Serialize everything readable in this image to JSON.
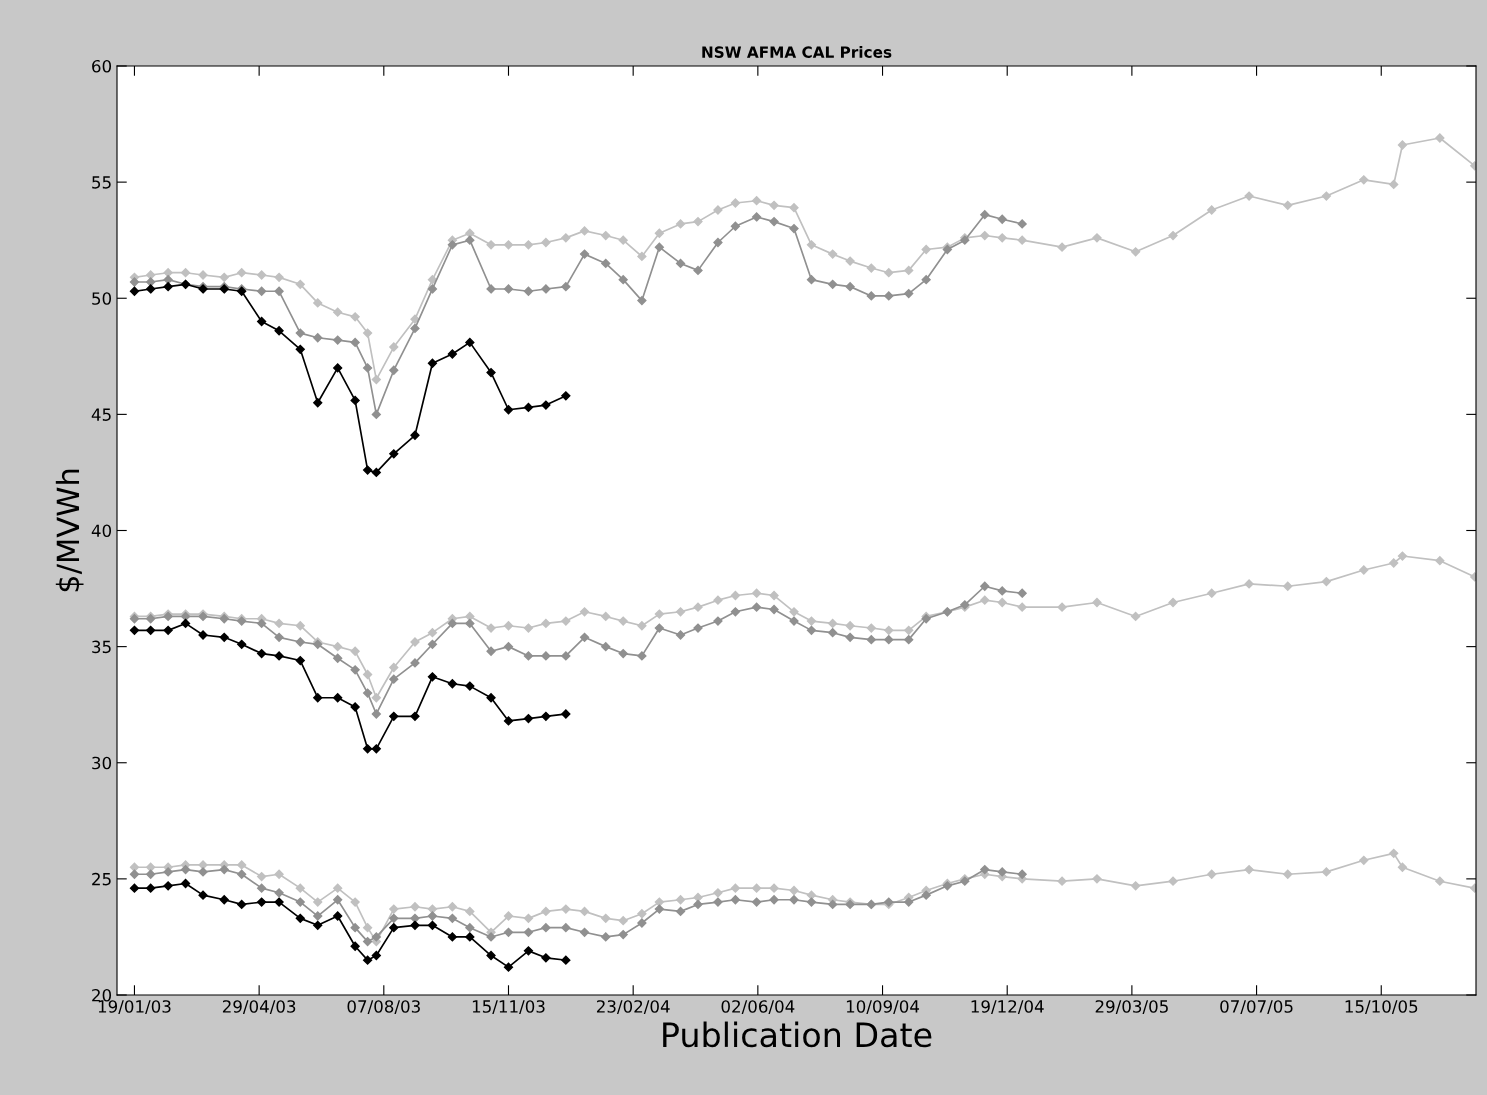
{
  "chart_data": {
    "type": "line",
    "title": "NSW AFMA CAL Prices",
    "xlabel": "Publication Date",
    "ylabel": "$/MVWh",
    "x": [
      "2003-01-19",
      "2003-02-01",
      "2003-02-15",
      "2003-03-01",
      "2003-03-15",
      "2003-04-01",
      "2003-04-15",
      "2003-05-01",
      "2003-05-15",
      "2003-06-01",
      "2003-06-15",
      "2003-07-01",
      "2003-07-15",
      "2003-07-25",
      "2003-08-01",
      "2003-08-15",
      "2003-09-01",
      "2003-09-15",
      "2003-10-01",
      "2003-10-15",
      "2003-11-01",
      "2003-11-15",
      "2003-12-01",
      "2003-12-15",
      "2003-12-31",
      "2004-01-15",
      "2004-02-01",
      "2004-02-15",
      "2004-03-01",
      "2004-03-15",
      "2004-04-01",
      "2004-04-15",
      "2004-05-01",
      "2004-05-15",
      "2004-06-01",
      "2004-06-15",
      "2004-07-01",
      "2004-07-15",
      "2004-08-01",
      "2004-08-15",
      "2004-09-01",
      "2004-09-15",
      "2004-10-01",
      "2004-10-15",
      "2004-11-01",
      "2004-11-15",
      "2004-12-01",
      "2004-12-15",
      "2004-12-31",
      "2005-02-01",
      "2005-03-01",
      "2005-04-01",
      "2005-05-01",
      "2005-06-01",
      "2005-07-01",
      "2005-08-01",
      "2005-09-01",
      "2005-10-01",
      "2005-10-25",
      "2005-11-01",
      "2005-12-01",
      "2005-12-29"
    ],
    "series": [
      {
        "color": "#c0c0c0",
        "values": [
          50.9,
          51.0,
          51.1,
          51.1,
          51.0,
          50.9,
          51.1,
          51.0,
          50.9,
          50.6,
          49.8,
          49.4,
          49.2,
          48.5,
          46.5,
          47.9,
          49.1,
          50.8,
          52.5,
          52.8,
          52.3,
          52.3,
          52.3,
          52.4,
          52.6,
          52.9,
          52.7,
          52.5,
          51.8,
          52.8,
          53.2,
          53.3,
          53.8,
          54.1,
          54.2,
          54.0,
          53.9,
          52.3,
          51.9,
          51.6,
          51.3,
          51.1,
          51.2,
          52.1,
          52.2,
          52.6,
          52.7,
          52.6,
          52.5,
          52.2,
          52.6,
          52.0,
          52.7,
          53.8,
          54.4,
          54.0,
          54.4,
          55.1,
          54.9,
          56.6,
          56.9,
          55.7
        ]
      },
      {
        "color": "#909090",
        "values": [
          50.7,
          50.7,
          50.8,
          50.6,
          50.5,
          50.5,
          50.4,
          50.3,
          50.3,
          48.5,
          48.3,
          48.2,
          48.1,
          47.0,
          45.0,
          46.9,
          48.7,
          50.4,
          52.3,
          52.5,
          50.4,
          50.4,
          50.3,
          50.4,
          50.5,
          51.9,
          51.5,
          50.8,
          49.9,
          52.2,
          51.5,
          51.2,
          52.4,
          53.1,
          53.5,
          53.3,
          53.0,
          50.8,
          50.6,
          50.5,
          50.1,
          50.1,
          50.2,
          50.8,
          52.1,
          52.5,
          53.6,
          53.4,
          53.2,
          null,
          null,
          null,
          null,
          null,
          null,
          null,
          null,
          null,
          null,
          null,
          null,
          null
        ]
      },
      {
        "color": "#000000",
        "values": [
          50.3,
          50.4,
          50.5,
          50.6,
          50.4,
          50.4,
          50.3,
          49.0,
          48.6,
          47.8,
          45.5,
          47.0,
          45.6,
          42.6,
          42.5,
          43.3,
          44.1,
          47.2,
          47.6,
          48.1,
          46.8,
          45.2,
          45.3,
          45.4,
          45.8,
          null,
          null,
          null,
          null,
          null,
          null,
          null,
          null,
          null,
          null,
          null,
          null,
          null,
          null,
          null,
          null,
          null,
          null,
          null,
          null,
          null,
          null,
          null,
          null,
          null,
          null,
          null,
          null,
          null,
          null,
          null,
          null,
          null,
          null,
          null,
          null,
          null
        ]
      },
      {
        "color": "#c0c0c0",
        "values": [
          36.3,
          36.3,
          36.4,
          36.4,
          36.4,
          36.3,
          36.2,
          36.2,
          36.0,
          35.9,
          35.2,
          35.0,
          34.8,
          33.8,
          32.8,
          34.1,
          35.2,
          35.6,
          36.2,
          36.3,
          35.8,
          35.9,
          35.8,
          36.0,
          36.1,
          36.5,
          36.3,
          36.1,
          35.9,
          36.4,
          36.5,
          36.7,
          37.0,
          37.2,
          37.3,
          37.2,
          36.5,
          36.1,
          36.0,
          35.9,
          35.8,
          35.7,
          35.7,
          36.3,
          36.5,
          36.7,
          37.0,
          36.9,
          36.7,
          36.7,
          36.9,
          36.3,
          36.9,
          37.3,
          37.7,
          37.6,
          37.8,
          38.3,
          38.6,
          38.9,
          38.7,
          38.0
        ]
      },
      {
        "color": "#909090",
        "values": [
          36.2,
          36.2,
          36.3,
          36.3,
          36.3,
          36.2,
          36.1,
          36.0,
          35.4,
          35.2,
          35.1,
          34.5,
          34.0,
          33.0,
          32.1,
          33.6,
          34.3,
          35.1,
          36.0,
          36.0,
          34.8,
          35.0,
          34.6,
          34.6,
          34.6,
          35.4,
          35.0,
          34.7,
          34.6,
          35.8,
          35.5,
          35.8,
          36.1,
          36.5,
          36.7,
          36.6,
          36.1,
          35.7,
          35.6,
          35.4,
          35.3,
          35.3,
          35.3,
          36.2,
          36.5,
          36.8,
          37.6,
          37.4,
          37.3,
          null,
          null,
          null,
          null,
          null,
          null,
          null,
          null,
          null,
          null,
          null,
          null,
          null
        ]
      },
      {
        "color": "#000000",
        "values": [
          35.7,
          35.7,
          35.7,
          36.0,
          35.5,
          35.4,
          35.1,
          34.7,
          34.6,
          34.4,
          32.8,
          32.8,
          32.4,
          30.6,
          30.6,
          32.0,
          32.0,
          33.7,
          33.4,
          33.3,
          32.8,
          31.8,
          31.9,
          32.0,
          32.1,
          null,
          null,
          null,
          null,
          null,
          null,
          null,
          null,
          null,
          null,
          null,
          null,
          null,
          null,
          null,
          null,
          null,
          null,
          null,
          null,
          null,
          null,
          null,
          null,
          null,
          null,
          null,
          null,
          null,
          null,
          null,
          null,
          null,
          null,
          null,
          null,
          null
        ]
      },
      {
        "color": "#c0c0c0",
        "values": [
          25.5,
          25.5,
          25.5,
          25.6,
          25.6,
          25.6,
          25.6,
          25.1,
          25.2,
          24.6,
          24.0,
          24.6,
          24.0,
          22.9,
          22.3,
          23.7,
          23.8,
          23.7,
          23.8,
          23.6,
          22.7,
          23.4,
          23.3,
          23.6,
          23.7,
          23.6,
          23.3,
          23.2,
          23.5,
          24.0,
          24.1,
          24.2,
          24.4,
          24.6,
          24.6,
          24.6,
          24.5,
          24.3,
          24.1,
          24.0,
          23.9,
          23.9,
          24.2,
          24.5,
          24.8,
          25.0,
          25.2,
          25.1,
          25.0,
          24.9,
          25.0,
          24.7,
          24.9,
          25.2,
          25.4,
          25.2,
          25.3,
          25.8,
          26.1,
          25.5,
          24.9,
          24.6
        ]
      },
      {
        "color": "#909090",
        "values": [
          25.2,
          25.2,
          25.3,
          25.4,
          25.3,
          25.4,
          25.2,
          24.6,
          24.4,
          24.0,
          23.4,
          24.1,
          22.9,
          22.3,
          22.5,
          23.3,
          23.3,
          23.4,
          23.3,
          22.9,
          22.5,
          22.7,
          22.7,
          22.9,
          22.9,
          22.7,
          22.5,
          22.6,
          23.1,
          23.7,
          23.6,
          23.9,
          24.0,
          24.1,
          24.0,
          24.1,
          24.1,
          24.0,
          23.9,
          23.9,
          23.9,
          24.0,
          24.0,
          24.3,
          24.7,
          24.9,
          25.4,
          25.3,
          25.2,
          null,
          null,
          null,
          null,
          null,
          null,
          null,
          null,
          null,
          null,
          null,
          null,
          null
        ]
      },
      {
        "color": "#000000",
        "values": [
          24.6,
          24.6,
          24.7,
          24.8,
          24.3,
          24.1,
          23.9,
          24.0,
          24.0,
          23.3,
          23.0,
          23.4,
          22.1,
          21.5,
          21.7,
          22.9,
          23.0,
          23.0,
          22.5,
          22.5,
          21.7,
          21.2,
          21.9,
          21.6,
          21.5,
          null,
          null,
          null,
          null,
          null,
          null,
          null,
          null,
          null,
          null,
          null,
          null,
          null,
          null,
          null,
          null,
          null,
          null,
          null,
          null,
          null,
          null,
          null,
          null,
          null,
          null,
          null,
          null,
          null,
          null,
          null,
          null,
          null,
          null,
          null,
          null,
          null
        ]
      }
    ],
    "xlim": [
      "2003-01-05",
      "2005-12-30"
    ],
    "xticks": [
      {
        "value": "2003-01-19",
        "label": "19/01/03"
      },
      {
        "value": "2003-04-29",
        "label": "29/04/03"
      },
      {
        "value": "2003-08-07",
        "label": "07/08/03"
      },
      {
        "value": "2003-11-15",
        "label": "15/11/03"
      },
      {
        "value": "2004-02-23",
        "label": "23/02/04"
      },
      {
        "value": "2004-06-02",
        "label": "02/06/04"
      },
      {
        "value": "2004-09-10",
        "label": "10/09/04"
      },
      {
        "value": "2004-12-19",
        "label": "19/12/04"
      },
      {
        "value": "2005-03-29",
        "label": "29/03/05"
      },
      {
        "value": "2005-07-07",
        "label": "07/07/05"
      },
      {
        "value": "2005-10-15",
        "label": "15/10/05"
      }
    ],
    "ylim": [
      20,
      60
    ],
    "yticks": [
      20,
      25,
      30,
      35,
      40,
      45,
      50,
      55,
      60
    ],
    "marker": "diamond",
    "line_style": "solid"
  }
}
